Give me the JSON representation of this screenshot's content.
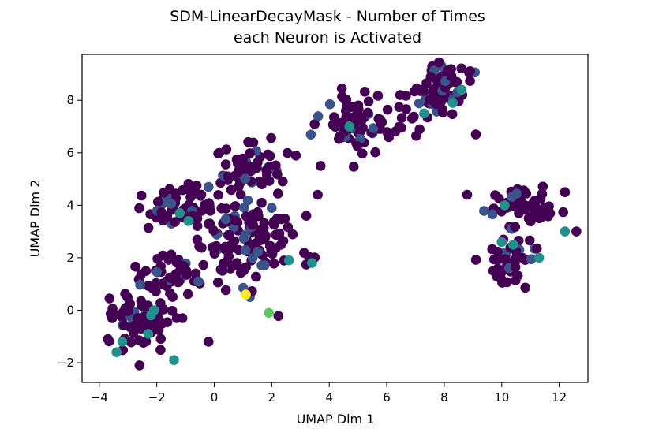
{
  "chart_data": {
    "type": "scatter",
    "title": "SDM-LinearDecayMask - Number of Times",
    "subtitle": "each Neuron is Activated",
    "xlabel": "UMAP Dim 1",
    "ylabel": "UMAP Dim 2",
    "xlim": [
      -4.6,
      13.0
    ],
    "ylim": [
      -2.75,
      9.75
    ],
    "xticks": [
      {
        "value": -4,
        "label": "−4"
      },
      {
        "value": -2,
        "label": "−2"
      },
      {
        "value": 0,
        "label": "0"
      },
      {
        "value": 2,
        "label": "2"
      },
      {
        "value": 4,
        "label": "4"
      },
      {
        "value": 6,
        "label": "6"
      },
      {
        "value": 8,
        "label": "8"
      },
      {
        "value": 10,
        "label": "10"
      },
      {
        "value": 12,
        "label": "12"
      }
    ],
    "yticks": [
      {
        "value": -2,
        "label": "−2"
      },
      {
        "value": 0,
        "label": "0"
      },
      {
        "value": 2,
        "label": "2"
      },
      {
        "value": 4,
        "label": "4"
      },
      {
        "value": 6,
        "label": "6"
      },
      {
        "value": 8,
        "label": "8"
      }
    ],
    "grid": false,
    "colormap": [
      "#440154",
      "#3b528b",
      "#21918c",
      "#5ec962",
      "#fde725"
    ],
    "clusters": [
      {
        "cx": -2.6,
        "cy": -0.4,
        "rx": 1.1,
        "ry": 1.1,
        "n": 70
      },
      {
        "cx": -1.0,
        "cy": 3.9,
        "rx": 1.3,
        "ry": 0.9,
        "n": 70
      },
      {
        "cx": 1.2,
        "cy": 5.4,
        "rx": 1.2,
        "ry": 0.9,
        "n": 60
      },
      {
        "cx": 1.2,
        "cy": 2.6,
        "rx": 1.4,
        "ry": 1.4,
        "n": 110
      },
      {
        "cx": -1.6,
        "cy": 1.3,
        "rx": 1.2,
        "ry": 0.9,
        "n": 45
      },
      {
        "cx": 5.1,
        "cy": 7.2,
        "rx": 1.3,
        "ry": 1.0,
        "n": 75
      },
      {
        "cx": 7.8,
        "cy": 8.3,
        "rx": 1.2,
        "ry": 1.0,
        "n": 70
      },
      {
        "cx": 10.7,
        "cy": 3.9,
        "rx": 1.0,
        "ry": 0.7,
        "n": 55
      },
      {
        "cx": 10.3,
        "cy": 2.0,
        "rx": 0.9,
        "ry": 0.8,
        "n": 40
      }
    ],
    "points": [
      {
        "x": -3.7,
        "y": -1.1,
        "level": 0
      },
      {
        "x": -3.4,
        "y": -1.6,
        "level": 2
      },
      {
        "x": -3.2,
        "y": -1.2,
        "level": 2
      },
      {
        "x": -2.6,
        "y": -2.1,
        "level": 0
      },
      {
        "x": -2.3,
        "y": -0.9,
        "level": 2
      },
      {
        "x": -2.2,
        "y": -0.2,
        "level": 2
      },
      {
        "x": -2.1,
        "y": 0.0,
        "level": 2
      },
      {
        "x": -1.4,
        "y": -1.9,
        "level": 2
      },
      {
        "x": -1.2,
        "y": 3.7,
        "level": 2
      },
      {
        "x": -0.9,
        "y": 3.4,
        "level": 2
      },
      {
        "x": -0.2,
        "y": 4.7,
        "level": 1
      },
      {
        "x": 1.1,
        "y": 0.6,
        "level": 4
      },
      {
        "x": 1.9,
        "y": -0.1,
        "level": 3
      },
      {
        "x": 2.6,
        "y": 1.9,
        "level": 2
      },
      {
        "x": 3.4,
        "y": 1.8,
        "level": 2
      },
      {
        "x": 3.6,
        "y": 4.4,
        "level": 0
      },
      {
        "x": 4.7,
        "y": 7.0,
        "level": 2
      },
      {
        "x": 7.3,
        "y": 7.5,
        "level": 2
      },
      {
        "x": 8.3,
        "y": 7.9,
        "level": 2
      },
      {
        "x": 8.6,
        "y": 8.4,
        "level": 2
      },
      {
        "x": 10.0,
        "y": 2.6,
        "level": 2
      },
      {
        "x": 10.1,
        "y": 4.0,
        "level": 2
      },
      {
        "x": 10.4,
        "y": 2.5,
        "level": 2
      },
      {
        "x": 11.3,
        "y": 2.0,
        "level": 2
      },
      {
        "x": 12.2,
        "y": 3.0,
        "level": 2
      },
      {
        "x": 12.6,
        "y": 3.0,
        "level": 0
      },
      {
        "x": 12.2,
        "y": 4.5,
        "level": 0
      },
      {
        "x": 9.1,
        "y": 6.7,
        "level": 0
      },
      {
        "x": 8.8,
        "y": 4.4,
        "level": 0
      },
      {
        "x": 3.2,
        "y": 3.6,
        "level": 0
      },
      {
        "x": 3.7,
        "y": 5.5,
        "level": 0
      },
      {
        "x": -0.2,
        "y": -1.2,
        "level": 0
      }
    ]
  }
}
